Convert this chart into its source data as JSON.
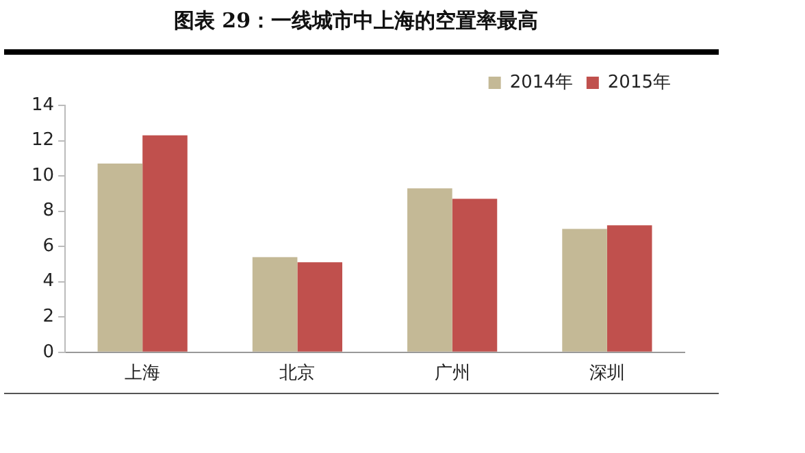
{
  "chart_data": {
    "type": "bar",
    "title": "图表 29：一线城市中上海的空置率最高",
    "categories": [
      "上海",
      "北京",
      "广州",
      "深圳"
    ],
    "series": [
      {
        "name": "2014年",
        "color": "#c4b996",
        "values": [
          10.7,
          5.4,
          9.3,
          7.0
        ]
      },
      {
        "name": "2015年",
        "color": "#c0504d",
        "values": [
          12.3,
          5.1,
          8.7,
          7.2
        ]
      }
    ],
    "ylim": [
      0,
      14
    ],
    "yticks": [
      0,
      2,
      4,
      6,
      8,
      10,
      12,
      14
    ],
    "grid": false,
    "legend": "top right"
  }
}
